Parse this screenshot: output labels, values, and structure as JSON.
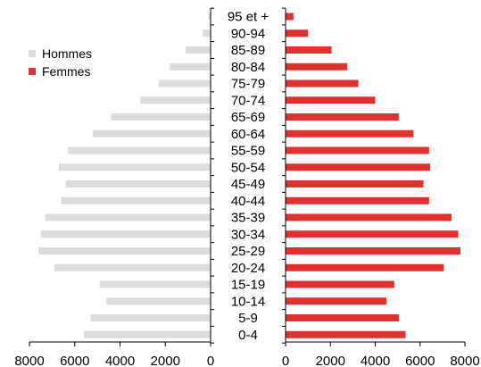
{
  "chart_data": {
    "type": "bar",
    "orientation": "horizontal-pyramid",
    "categories": [
      "95 et +",
      "90-94",
      "85-89",
      "80-84",
      "75-79",
      "70-74",
      "65-69",
      "60-64",
      "55-59",
      "50-54",
      "45-49",
      "40-44",
      "35-39",
      "30-34",
      "25-29",
      "20-24",
      "15-19",
      "10-14",
      "5-9",
      "0-4"
    ],
    "series": [
      {
        "name": "Hommes",
        "color": "#dcdcdc",
        "values": [
          100,
          350,
          1100,
          1800,
          2300,
          3100,
          4400,
          5200,
          6300,
          6700,
          6400,
          6600,
          7300,
          7500,
          7600,
          6900,
          4900,
          4600,
          5300,
          5600
        ]
      },
      {
        "name": "Femmes",
        "color": "#e03030",
        "values": [
          350,
          1000,
          2050,
          2750,
          3250,
          4000,
          5050,
          5700,
          6400,
          6450,
          6150,
          6400,
          7400,
          7700,
          7800,
          7050,
          4850,
          4500,
          5050,
          5350
        ]
      }
    ],
    "left_axis": {
      "ticks": [
        "8000",
        "6000",
        "4000",
        "2000",
        "0"
      ],
      "range": [
        8000,
        0
      ]
    },
    "right_axis": {
      "ticks": [
        "0",
        "2000",
        "4000",
        "6000",
        "8000"
      ],
      "range": [
        0,
        8000
      ]
    },
    "legend_position": "top-left",
    "grid": false
  }
}
